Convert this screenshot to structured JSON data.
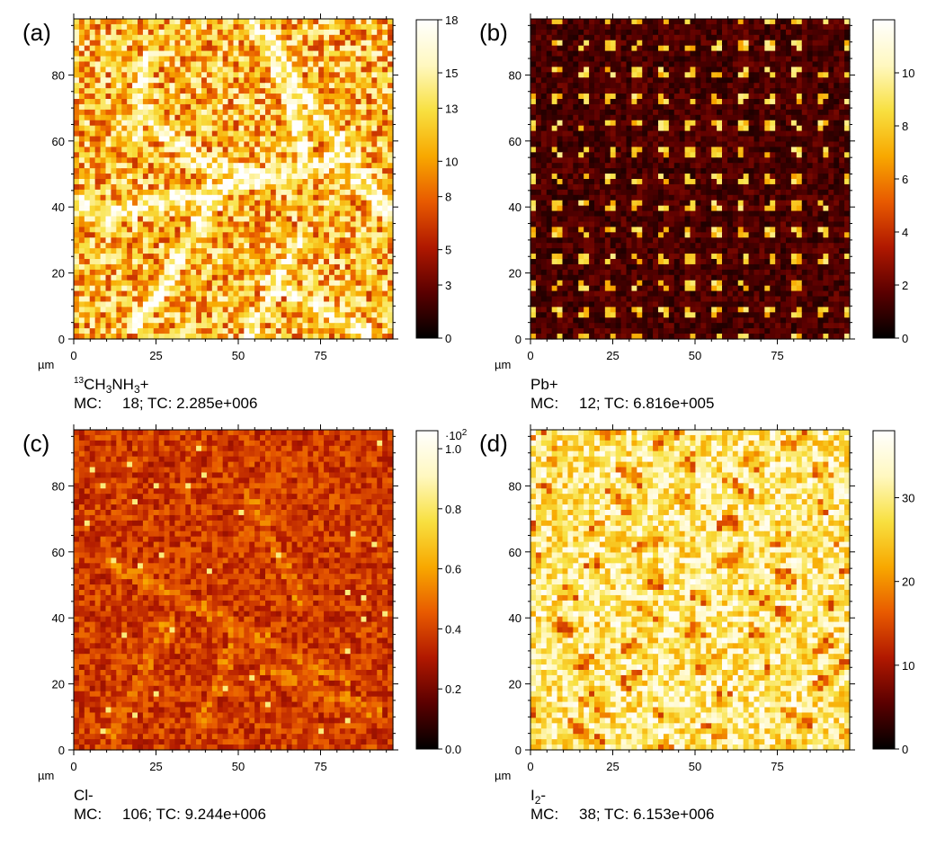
{
  "chart_data": [
    {
      "type": "heatmap",
      "panel": "(a)",
      "species": {
        "pre": "",
        "sup": "13",
        "main": "CH",
        "sub1": "3",
        "mid": "NH",
        "sub2": "3",
        "post": "+"
      },
      "mc_label": "MC:",
      "mc_value": "18; TC: 2.285e+006",
      "unit": "µm",
      "x_ticks": [
        "0",
        "25",
        "50",
        "75"
      ],
      "y_ticks": [
        "0",
        "20",
        "40",
        "60",
        "80"
      ],
      "xlim": [
        0,
        97
      ],
      "ylim": [
        0,
        97
      ],
      "colorbar_ticks": [
        "0",
        "3",
        "5",
        "8",
        "10",
        "13",
        "15",
        "18"
      ],
      "colorbar_range": [
        0,
        18
      ],
      "colorbar_multiplier": "",
      "level": 0.62,
      "texture": "fibers",
      "colormap": [
        "#000000",
        "#5a0000",
        "#b01800",
        "#e85a00",
        "#f8a800",
        "#f8e040",
        "#fff8c0",
        "#ffffff"
      ]
    },
    {
      "type": "heatmap",
      "panel": "(b)",
      "species": {
        "pre": "Pb+",
        "sup": "",
        "main": "",
        "sub1": "",
        "mid": "",
        "sub2": "",
        "post": ""
      },
      "mc_label": "MC:",
      "mc_value": "12; TC: 6.816e+005",
      "unit": "µm",
      "x_ticks": [
        "0",
        "25",
        "50",
        "75"
      ],
      "y_ticks": [
        "0",
        "20",
        "40",
        "60",
        "80"
      ],
      "xlim": [
        0,
        97
      ],
      "ylim": [
        0,
        97
      ],
      "colorbar_ticks": [
        "0",
        "2",
        "4",
        "6",
        "8",
        "10"
      ],
      "colorbar_range": [
        0,
        12
      ],
      "colorbar_multiplier": "",
      "level": 0.28,
      "texture": "dots",
      "colormap": [
        "#000000",
        "#5a0000",
        "#b01800",
        "#e85a00",
        "#f8a800",
        "#f8e040",
        "#fff8c0",
        "#ffffff"
      ]
    },
    {
      "type": "heatmap",
      "panel": "(c)",
      "species": {
        "pre": "Cl-",
        "sup": "",
        "main": "",
        "sub1": "",
        "mid": "",
        "sub2": "",
        "post": ""
      },
      "mc_label": "MC:",
      "mc_value": "106; TC: 9.244e+006",
      "unit": "µm",
      "x_ticks": [
        "0",
        "25",
        "50",
        "75"
      ],
      "y_ticks": [
        "0",
        "20",
        "40",
        "60",
        "80"
      ],
      "xlim": [
        0,
        97
      ],
      "ylim": [
        0,
        97
      ],
      "colorbar_ticks": [
        "0.0",
        "0.2",
        "0.4",
        "0.6",
        "0.8",
        "1.0"
      ],
      "colorbar_range": [
        0,
        1.06
      ],
      "colorbar_multiplier": "·10",
      "colorbar_multiplier_exp": "2",
      "level": 0.4,
      "texture": "cells",
      "colormap": [
        "#000000",
        "#5a0000",
        "#b01800",
        "#e85a00",
        "#f8a800",
        "#f8e040",
        "#fff8c0",
        "#ffffff"
      ]
    },
    {
      "type": "heatmap",
      "panel": "(d)",
      "species": {
        "pre": "I",
        "sup": "",
        "main": "",
        "sub1": "2",
        "mid": "-",
        "sub2": "",
        "post": ""
      },
      "mc_label": "MC:",
      "mc_value": "38; TC: 6.153e+006",
      "unit": "µm",
      "x_ticks": [
        "0",
        "25",
        "50",
        "75"
      ],
      "y_ticks": [
        "0",
        "20",
        "40",
        "60",
        "80"
      ],
      "xlim": [
        0,
        97
      ],
      "ylim": [
        0,
        97
      ],
      "colorbar_ticks": [
        "0",
        "10",
        "20",
        "30"
      ],
      "colorbar_range": [
        0,
        38
      ],
      "colorbar_multiplier": "",
      "level": 0.78,
      "texture": "grains",
      "colormap": [
        "#000000",
        "#5a0000",
        "#b01800",
        "#e85a00",
        "#f8a800",
        "#f8e040",
        "#fff8c0",
        "#ffffff"
      ]
    }
  ]
}
